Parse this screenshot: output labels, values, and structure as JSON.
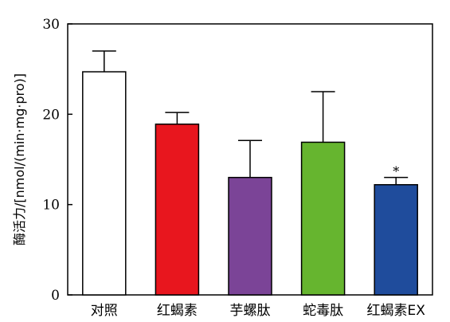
{
  "chart_data": {
    "type": "bar",
    "categories": [
      "对照",
      "红蝎素",
      "芋螺肽",
      "蛇毒肽",
      "红蝎素EX"
    ],
    "values": [
      24.7,
      18.9,
      13.0,
      16.9,
      12.2
    ],
    "error_upper": [
      27.0,
      20.2,
      17.1,
      22.5,
      13.0
    ],
    "colors": [
      "#ffffff",
      "#e8161e",
      "#7b4497",
      "#66b52f",
      "#1f4c9c"
    ],
    "annotations": [
      "",
      "",
      "",
      "",
      "*"
    ],
    "ylabel": "酶活力/[nmol/(min·mg·pro)]",
    "ylim": [
      0,
      30
    ],
    "yticks": [
      0,
      10,
      20,
      30
    ],
    "grid": false,
    "legend": "none"
  }
}
